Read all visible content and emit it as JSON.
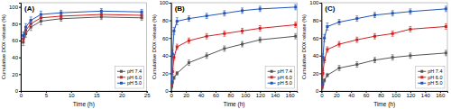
{
  "chart_data": [
    {
      "type": "line",
      "title": "(A)",
      "xlabel": "Time (h)",
      "ylabel": "Cumulative DOX release (%)",
      "xlim": [
        0,
        25
      ],
      "ylim": [
        0,
        105
      ],
      "xticks": [
        0,
        5,
        10,
        15,
        20,
        25
      ],
      "yticks": [
        0,
        20,
        40,
        60,
        80,
        100
      ],
      "grid": false,
      "legend": "lower right",
      "marker": "square",
      "x": [
        0.5,
        1,
        2,
        4,
        8,
        16,
        24
      ],
      "series": [
        {
          "name": "pH 7.4",
          "color": "#555555",
          "values": [
            58,
            68,
            76,
            83,
            86,
            88,
            87
          ],
          "errors": [
            4,
            4,
            4,
            4,
            3,
            3,
            3
          ]
        },
        {
          "name": "pH 6.0",
          "color": "#cc2222",
          "values": [
            62,
            72,
            80,
            87,
            89,
            91,
            90
          ],
          "errors": [
            4,
            4,
            4,
            4,
            3,
            3,
            3
          ]
        },
        {
          "name": "pH 5.0",
          "color": "#2255bb",
          "values": [
            66,
            76,
            84,
            91,
            93,
            95,
            94
          ],
          "errors": [
            4,
            4,
            4,
            4,
            3,
            3,
            3
          ]
        }
      ]
    },
    {
      "type": "line",
      "title": "(B)",
      "xlabel": "Time (h)",
      "ylabel": "Cumulative DOX release (%)",
      "xlim": [
        0,
        170
      ],
      "ylim": [
        0,
        100
      ],
      "xticks": [
        0,
        20,
        40,
        60,
        80,
        100,
        120,
        140,
        160
      ],
      "yticks": [
        0,
        20,
        40,
        60,
        80,
        100
      ],
      "grid": false,
      "legend": "lower right",
      "marker": "square",
      "x": [
        1,
        2,
        4,
        8,
        24,
        48,
        72,
        96,
        120,
        168
      ],
      "series": [
        {
          "name": "pH 7.4",
          "color": "#555555",
          "values": [
            5,
            10,
            15,
            20,
            32,
            40,
            48,
            53,
            58,
            62
          ],
          "errors": [
            2,
            2,
            2,
            2,
            3,
            3,
            3,
            3,
            3,
            3
          ]
        },
        {
          "name": "pH 6.0",
          "color": "#cc2222",
          "values": [
            8,
            22,
            38,
            50,
            57,
            62,
            65,
            68,
            71,
            75
          ],
          "errors": [
            2,
            3,
            3,
            3,
            3,
            3,
            3,
            3,
            3,
            3
          ]
        },
        {
          "name": "pH 5.0",
          "color": "#2255bb",
          "values": [
            10,
            42,
            68,
            79,
            82,
            85,
            88,
            91,
            93,
            95
          ],
          "errors": [
            2,
            4,
            4,
            4,
            3,
            3,
            3,
            3,
            3,
            3
          ]
        }
      ]
    },
    {
      "type": "line",
      "title": "(C)",
      "xlabel": "Time (h)",
      "ylabel": "Cumulative DOX release (%)",
      "xlim": [
        0,
        170
      ],
      "ylim": [
        0,
        100
      ],
      "xticks": [
        0,
        20,
        40,
        60,
        80,
        100,
        120,
        140,
        160
      ],
      "yticks": [
        0,
        20,
        40,
        60,
        80,
        100
      ],
      "grid": false,
      "legend": "lower right",
      "marker": "square",
      "x": [
        1,
        2,
        4,
        8,
        24,
        48,
        72,
        96,
        120,
        168
      ],
      "series": [
        {
          "name": "pH 7.4",
          "color": "#555555",
          "values": [
            4,
            8,
            12,
            18,
            26,
            30,
            35,
            38,
            40,
            43
          ],
          "errors": [
            2,
            2,
            2,
            2,
            3,
            3,
            3,
            3,
            3,
            3
          ]
        },
        {
          "name": "pH 6.0",
          "color": "#cc2222",
          "values": [
            6,
            20,
            35,
            47,
            53,
            58,
            62,
            65,
            70,
            73
          ],
          "errors": [
            2,
            3,
            3,
            3,
            3,
            3,
            3,
            3,
            3,
            3
          ]
        },
        {
          "name": "pH 5.0",
          "color": "#2255bb",
          "values": [
            8,
            38,
            60,
            73,
            78,
            82,
            86,
            88,
            90,
            93
          ],
          "errors": [
            2,
            4,
            4,
            4,
            3,
            3,
            3,
            3,
            3,
            3
          ]
        }
      ]
    }
  ]
}
